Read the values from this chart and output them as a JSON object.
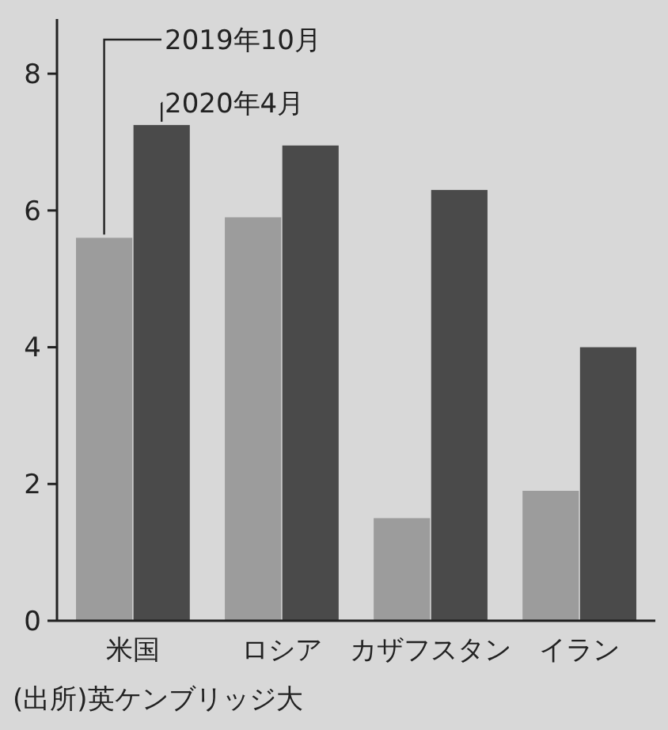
{
  "chart_data": {
    "type": "bar",
    "categories": [
      "米国",
      "ロシア",
      "カザフスタン",
      "イラン"
    ],
    "series": [
      {
        "name": "2019年10月",
        "color": "#9c9c9c",
        "values": [
          5.6,
          5.9,
          1.5,
          1.9
        ]
      },
      {
        "name": "2020年4月",
        "color": "#4a4a4a",
        "values": [
          7.25,
          6.95,
          6.3,
          4.0
        ]
      }
    ],
    "ylim": [
      0,
      8.8
    ],
    "yticks": [
      0,
      2,
      4,
      6,
      8
    ],
    "grid": false,
    "legend": "top",
    "annotations": [
      "(出所)英ケンブリッジ大"
    ]
  }
}
